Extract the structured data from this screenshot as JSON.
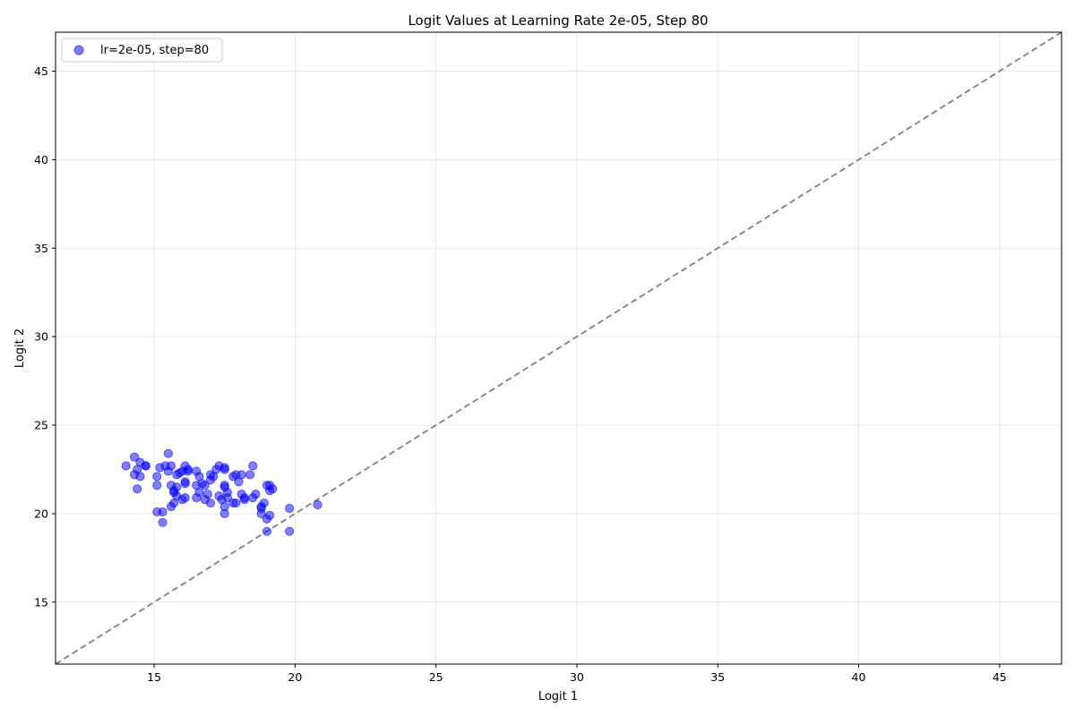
{
  "chart_data": {
    "type": "scatter",
    "title": "Logit Values at Learning Rate 2e-05, Step 80",
    "xlabel": "Logit 1",
    "ylabel": "Logit 2",
    "xlim": [
      11.5,
      47.2
    ],
    "ylim": [
      11.5,
      47.2
    ],
    "x_ticks": [
      15,
      20,
      25,
      30,
      35,
      40,
      45
    ],
    "y_ticks": [
      15,
      20,
      25,
      30,
      35,
      40,
      45
    ],
    "grid": true,
    "legend_position": "top-left",
    "reference_line": "y = x (dashed, gray)",
    "series": [
      {
        "name": "lr=2e-05, step=80",
        "color": "#0000ff",
        "points": [
          [
            14.0,
            22.7
          ],
          [
            14.3,
            23.2
          ],
          [
            14.3,
            22.2
          ],
          [
            14.4,
            22.5
          ],
          [
            14.5,
            22.9
          ],
          [
            14.5,
            22.1
          ],
          [
            14.4,
            21.4
          ],
          [
            14.7,
            22.7
          ],
          [
            15.1,
            22.1
          ],
          [
            15.1,
            21.6
          ],
          [
            15.2,
            22.6
          ],
          [
            15.4,
            22.7
          ],
          [
            15.5,
            23.4
          ],
          [
            15.5,
            22.4
          ],
          [
            15.6,
            22.7
          ],
          [
            15.6,
            21.6
          ],
          [
            15.7,
            21.3
          ],
          [
            15.8,
            21.5
          ],
          [
            15.7,
            21.2
          ],
          [
            15.7,
            20.6
          ],
          [
            15.6,
            20.4
          ],
          [
            15.8,
            22.2
          ],
          [
            15.9,
            22.3
          ],
          [
            16.0,
            22.4
          ],
          [
            16.1,
            22.7
          ],
          [
            16.1,
            21.8
          ],
          [
            16.1,
            21.7
          ],
          [
            16.2,
            22.5
          ],
          [
            16.0,
            20.8
          ],
          [
            16.1,
            20.9
          ],
          [
            15.8,
            21.0
          ],
          [
            16.5,
            22.4
          ],
          [
            16.5,
            21.6
          ],
          [
            16.6,
            22.1
          ],
          [
            16.7,
            21.7
          ],
          [
            16.8,
            21.6
          ],
          [
            16.6,
            21.2
          ],
          [
            16.9,
            21.1
          ],
          [
            16.8,
            20.8
          ],
          [
            16.5,
            20.9
          ],
          [
            17.0,
            22.2
          ],
          [
            17.0,
            21.9
          ],
          [
            17.1,
            22.1
          ],
          [
            17.2,
            22.5
          ],
          [
            17.3,
            22.7
          ],
          [
            17.5,
            22.6
          ],
          [
            17.5,
            22.5
          ],
          [
            17.5,
            21.6
          ],
          [
            17.5,
            21.5
          ],
          [
            17.6,
            21.2
          ],
          [
            17.6,
            20.9
          ],
          [
            17.3,
            21.0
          ],
          [
            17.4,
            20.8
          ],
          [
            17.0,
            20.6
          ],
          [
            17.5,
            20.4
          ],
          [
            17.5,
            20.0
          ],
          [
            17.8,
            22.1
          ],
          [
            17.9,
            22.2
          ],
          [
            18.0,
            21.8
          ],
          [
            18.1,
            21.1
          ],
          [
            18.1,
            22.2
          ],
          [
            18.2,
            20.9
          ],
          [
            18.2,
            20.8
          ],
          [
            18.4,
            22.2
          ],
          [
            18.5,
            22.7
          ],
          [
            18.5,
            20.9
          ],
          [
            18.6,
            21.1
          ],
          [
            17.8,
            20.6
          ],
          [
            17.9,
            20.6
          ],
          [
            18.8,
            20.3
          ],
          [
            18.8,
            20.4
          ],
          [
            18.8,
            20.0
          ],
          [
            18.9,
            20.6
          ],
          [
            19.0,
            21.6
          ],
          [
            19.1,
            21.6
          ],
          [
            19.1,
            21.3
          ],
          [
            19.2,
            21.4
          ],
          [
            19.0,
            19.7
          ],
          [
            19.1,
            19.9
          ],
          [
            19.0,
            19.0
          ],
          [
            19.8,
            20.3
          ],
          [
            19.8,
            19.0
          ],
          [
            20.8,
            20.5
          ],
          [
            15.1,
            20.1
          ],
          [
            15.3,
            20.1
          ],
          [
            15.3,
            19.5
          ],
          [
            14.7,
            22.7
          ],
          [
            16.2,
            22.4
          ]
        ]
      }
    ]
  }
}
